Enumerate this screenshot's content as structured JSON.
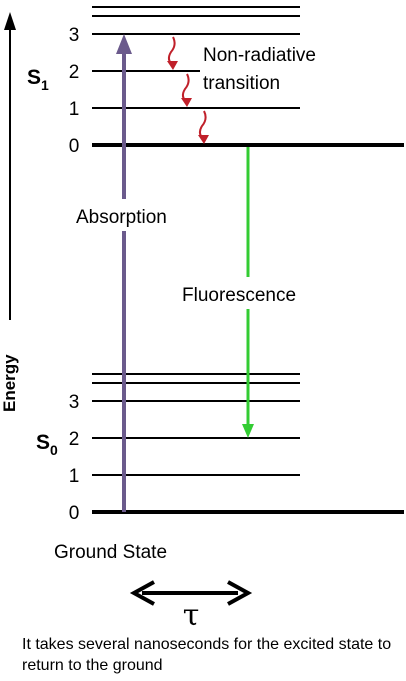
{
  "axis": {
    "label": "Energy"
  },
  "excited_state": {
    "label_main": "S",
    "label_sub": "1",
    "levels": [
      "0",
      "1",
      "2",
      "3"
    ]
  },
  "ground_state": {
    "label_main": "S",
    "label_sub": "0",
    "levels": [
      "0",
      "1",
      "2",
      "3"
    ],
    "caption": "Ground State"
  },
  "processes": {
    "absorption": "Absorption",
    "fluorescence": "Fluorescence",
    "non_radiative_line1": "Non-radiative",
    "non_radiative_line2": "transition"
  },
  "lifetime_symbol": "τ",
  "caption": "It takes several nanoseconds for the excited state to return to the ground",
  "colors": {
    "absorption": "#6b5a8c",
    "fluorescence": "#33cc33",
    "non_radiative": "#c0202a",
    "lines": "#000000"
  }
}
